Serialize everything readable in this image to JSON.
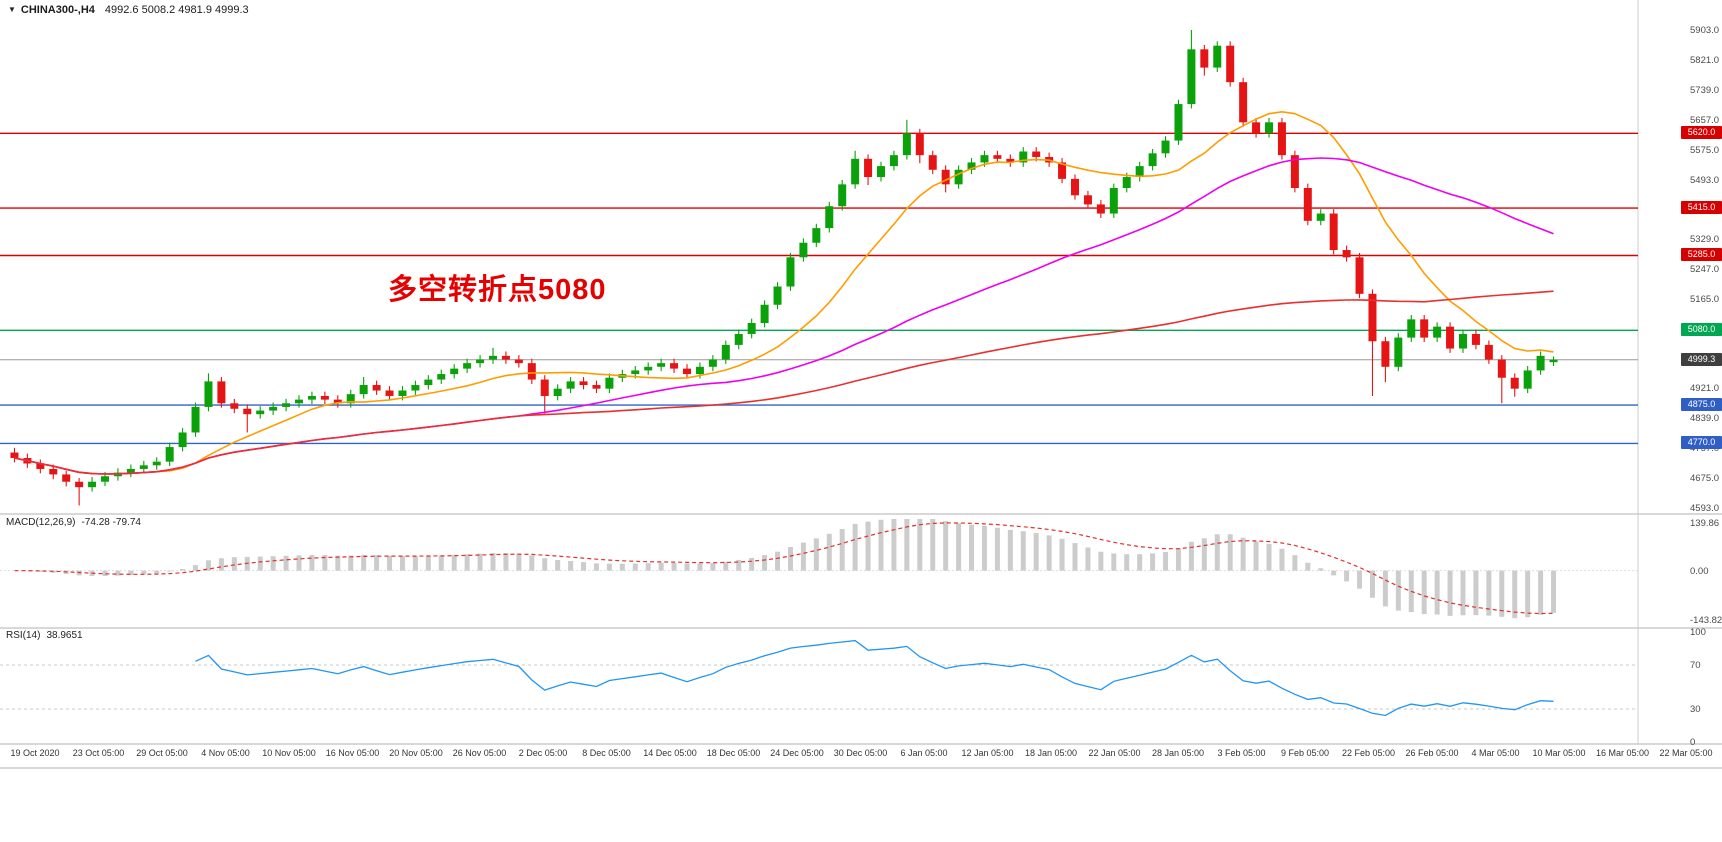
{
  "header": {
    "symbol": "CHINA300-,H4",
    "ohlc": "4992.6 5008.2 4981.9 4999.3"
  },
  "icons": {
    "symbol_collapse": "▼"
  },
  "annotation": {
    "text": "多空转折点5080",
    "color": "#e60000"
  },
  "chart_data": {
    "type": "candlestick",
    "symbol": "CHINA300-",
    "timeframe": "H4",
    "last_ohlc": {
      "open": 4992.6,
      "high": 5008.2,
      "low": 4981.9,
      "close": 4999.3
    },
    "candle_up_color": "#0aa10a",
    "candle_down_color": "#e51515",
    "price_axis": {
      "min": 4593,
      "max": 5903,
      "ticks": [
        "5903.0",
        "5821.0",
        "5739.0",
        "5657.0",
        "5575.0",
        "5493.0",
        "5411.0",
        "5329.0",
        "5247.0",
        "5165.0",
        "5083.0",
        "5001.0",
        "4921.0",
        "4839.0",
        "4757.0",
        "4675.0",
        "4593.0"
      ]
    },
    "levels": [
      {
        "price": 5620.0,
        "label": "5620.0",
        "color": "#dd0000",
        "badge": "#d60000",
        "type": "resistance"
      },
      {
        "price": 5415.0,
        "label": "5415.0",
        "color": "#dd0000",
        "badge": "#d60000",
        "type": "resistance"
      },
      {
        "price": 5285.0,
        "label": "5285.0",
        "color": "#dd0000",
        "badge": "#d60000",
        "type": "resistance"
      },
      {
        "price": 5080.0,
        "label": "5080.0",
        "color": "#00a651",
        "badge": "#00a651",
        "type": "pivot"
      },
      {
        "price": 4999.3,
        "label": "4999.3",
        "color": "#9a9a9a",
        "badge": "#3f3f3f",
        "type": "current-price"
      },
      {
        "price": 4875.0,
        "label": "4875.0",
        "color": "#2e64c8",
        "badge": "#2f5fc4",
        "type": "support"
      },
      {
        "price": 4770.0,
        "label": "4770.0",
        "color": "#2e64c8",
        "badge": "#2f5fc4",
        "type": "support"
      }
    ],
    "moving_averages": [
      {
        "name": "ma-fast",
        "period": 12,
        "color": "#ff9d00"
      },
      {
        "name": "ma-medium",
        "period": 40,
        "color": "#ee00ee"
      },
      {
        "name": "ma-slow",
        "period": 110,
        "color": "#e83030"
      }
    ],
    "candles_ohlc": [
      [
        4745,
        4758,
        4718,
        4730
      ],
      [
        4730,
        4742,
        4703,
        4715
      ],
      [
        4715,
        4726,
        4688,
        4700
      ],
      [
        4700,
        4712,
        4672,
        4685
      ],
      [
        4685,
        4695,
        4652,
        4665
      ],
      [
        4665,
        4675,
        4600,
        4650
      ],
      [
        4650,
        4678,
        4638,
        4665
      ],
      [
        4665,
        4692,
        4653,
        4680
      ],
      [
        4680,
        4702,
        4668,
        4690
      ],
      [
        4690,
        4712,
        4678,
        4700
      ],
      [
        4700,
        4722,
        4688,
        4710
      ],
      [
        4710,
        4732,
        4698,
        4720
      ],
      [
        4720,
        4772,
        4708,
        4760
      ],
      [
        4760,
        4812,
        4748,
        4800
      ],
      [
        4800,
        4882,
        4788,
        4870
      ],
      [
        4870,
        4962,
        4858,
        4940
      ],
      [
        4940,
        4952,
        4868,
        4880
      ],
      [
        4880,
        4892,
        4853,
        4865
      ],
      [
        4865,
        4877,
        4800,
        4850
      ],
      [
        4850,
        4872,
        4838,
        4860
      ],
      [
        4860,
        4882,
        4848,
        4870
      ],
      [
        4870,
        4892,
        4858,
        4880
      ],
      [
        4880,
        4902,
        4868,
        4890
      ],
      [
        4890,
        4912,
        4878,
        4900
      ],
      [
        4900,
        4912,
        4878,
        4890
      ],
      [
        4890,
        4902,
        4868,
        4880
      ],
      [
        4880,
        4917,
        4868,
        4905
      ],
      [
        4905,
        4952,
        4893,
        4930
      ],
      [
        4930,
        4942,
        4903,
        4915
      ],
      [
        4915,
        4927,
        4888,
        4900
      ],
      [
        4900,
        4927,
        4888,
        4915
      ],
      [
        4915,
        4942,
        4903,
        4930
      ],
      [
        4930,
        4957,
        4918,
        4945
      ],
      [
        4945,
        4972,
        4933,
        4960
      ],
      [
        4960,
        4987,
        4948,
        4975
      ],
      [
        4975,
        5002,
        4963,
        4990
      ],
      [
        4990,
        5012,
        4978,
        5000
      ],
      [
        5000,
        5032,
        4988,
        5010
      ],
      [
        5010,
        5022,
        4988,
        5000
      ],
      [
        5000,
        5012,
        4978,
        4990
      ],
      [
        4990,
        5002,
        4933,
        4945
      ],
      [
        4945,
        4957,
        4852,
        4900
      ],
      [
        4900,
        4932,
        4888,
        4920
      ],
      [
        4920,
        4952,
        4908,
        4940
      ],
      [
        4940,
        4952,
        4918,
        4930
      ],
      [
        4930,
        4942,
        4908,
        4920
      ],
      [
        4920,
        4962,
        4908,
        4950
      ],
      [
        4950,
        4972,
        4938,
        4960
      ],
      [
        4960,
        4982,
        4948,
        4970
      ],
      [
        4970,
        4992,
        4958,
        4980
      ],
      [
        4980,
        5002,
        4968,
        4990
      ],
      [
        4990,
        5002,
        4963,
        4975
      ],
      [
        4975,
        4987,
        4948,
        4960
      ],
      [
        4960,
        4992,
        4948,
        4980
      ],
      [
        4980,
        5012,
        4968,
        5000
      ],
      [
        5000,
        5052,
        4988,
        5040
      ],
      [
        5040,
        5082,
        5028,
        5070
      ],
      [
        5070,
        5112,
        5058,
        5100
      ],
      [
        5100,
        5162,
        5088,
        5150
      ],
      [
        5150,
        5212,
        5138,
        5200
      ],
      [
        5200,
        5292,
        5188,
        5280
      ],
      [
        5280,
        5332,
        5268,
        5320
      ],
      [
        5320,
        5372,
        5308,
        5360
      ],
      [
        5360,
        5432,
        5348,
        5420
      ],
      [
        5420,
        5492,
        5408,
        5480
      ],
      [
        5480,
        5572,
        5468,
        5550
      ],
      [
        5550,
        5562,
        5478,
        5500
      ],
      [
        5500,
        5542,
        5488,
        5530
      ],
      [
        5530,
        5572,
        5518,
        5560
      ],
      [
        5560,
        5657,
        5548,
        5620
      ],
      [
        5620,
        5632,
        5538,
        5560
      ],
      [
        5560,
        5572,
        5508,
        5520
      ],
      [
        5520,
        5532,
        5458,
        5480
      ],
      [
        5480,
        5532,
        5468,
        5520
      ],
      [
        5520,
        5552,
        5508,
        5540
      ],
      [
        5540,
        5572,
        5528,
        5560
      ],
      [
        5560,
        5572,
        5538,
        5550
      ],
      [
        5550,
        5562,
        5528,
        5540
      ],
      [
        5540,
        5582,
        5528,
        5570
      ],
      [
        5570,
        5582,
        5543,
        5555
      ],
      [
        5555,
        5567,
        5528,
        5540
      ],
      [
        5540,
        5552,
        5483,
        5495
      ],
      [
        5495,
        5507,
        5438,
        5450
      ],
      [
        5450,
        5462,
        5413,
        5425
      ],
      [
        5425,
        5437,
        5388,
        5400
      ],
      [
        5400,
        5482,
        5388,
        5470
      ],
      [
        5470,
        5512,
        5458,
        5500
      ],
      [
        5500,
        5542,
        5488,
        5530
      ],
      [
        5530,
        5577,
        5518,
        5565
      ],
      [
        5565,
        5612,
        5553,
        5600
      ],
      [
        5600,
        5712,
        5588,
        5700
      ],
      [
        5700,
        5903,
        5688,
        5850
      ],
      [
        5850,
        5862,
        5778,
        5800
      ],
      [
        5800,
        5872,
        5788,
        5860
      ],
      [
        5860,
        5872,
        5748,
        5760
      ],
      [
        5760,
        5772,
        5638,
        5650
      ],
      [
        5650,
        5662,
        5608,
        5620
      ],
      [
        5620,
        5662,
        5608,
        5650
      ],
      [
        5650,
        5662,
        5548,
        5560
      ],
      [
        5560,
        5572,
        5458,
        5470
      ],
      [
        5470,
        5482,
        5368,
        5380
      ],
      [
        5380,
        5412,
        5368,
        5400
      ],
      [
        5400,
        5412,
        5288,
        5300
      ],
      [
        5300,
        5312,
        5268,
        5280
      ],
      [
        5280,
        5292,
        5168,
        5180
      ],
      [
        5180,
        5192,
        4900,
        5050
      ],
      [
        5050,
        5062,
        4938,
        4980
      ],
      [
        4980,
        5072,
        4968,
        5060
      ],
      [
        5060,
        5122,
        5048,
        5110
      ],
      [
        5110,
        5122,
        5048,
        5060
      ],
      [
        5060,
        5102,
        5048,
        5090
      ],
      [
        5090,
        5102,
        5018,
        5030
      ],
      [
        5030,
        5082,
        5018,
        5070
      ],
      [
        5070,
        5082,
        5028,
        5040
      ],
      [
        5040,
        5052,
        4988,
        5000
      ],
      [
        5000,
        5012,
        4880,
        4950
      ],
      [
        4950,
        4962,
        4898,
        4920
      ],
      [
        4920,
        4982,
        4908,
        4970
      ],
      [
        4970,
        5022,
        4958,
        5010
      ],
      [
        4992.6,
        5008.2,
        4981.9,
        4999.3
      ]
    ],
    "macd": {
      "label": "MACD(12,26,9)",
      "values_text": "-74.28 -79.74",
      "macd_value": -74.28,
      "signal_value": -79.74,
      "fast": 12,
      "slow": 26,
      "signal_period": 9,
      "axis_ticks": [
        "139.86",
        "0.00",
        "-143.82"
      ],
      "histogram_color": "#cccccc",
      "signal_color": "#e03131"
    },
    "rsi": {
      "label": "RSI(14)",
      "value_text": "38.9651",
      "value": 38.9651,
      "period": 14,
      "axis_ticks": [
        "100",
        "70",
        "30",
        "0"
      ],
      "overbought": 70,
      "oversold": 30,
      "color": "#2196f3"
    },
    "time_labels": [
      "19 Oct 2020",
      "23 Oct 05:00",
      "29 Oct 05:00",
      "4 Nov 05:00",
      "10 Nov 05:00",
      "16 Nov 05:00",
      "20 Nov 05:00",
      "26 Nov 05:00",
      "2 Dec 05:00",
      "8 Dec 05:00",
      "14 Dec 05:00",
      "18 Dec 05:00",
      "24 Dec 05:00",
      "30 Dec 05:00",
      "6 Jan 05:00",
      "12 Jan 05:00",
      "18 Jan 05:00",
      "22 Jan 05:00",
      "28 Jan 05:00",
      "3 Feb 05:00",
      "9 Feb 05:00",
      "22 Feb 05:00",
      "26 Feb 05:00",
      "4 Mar 05:00",
      "10 Mar 05:00",
      "16 Mar 05:00",
      "22 Mar 05:00"
    ]
  }
}
